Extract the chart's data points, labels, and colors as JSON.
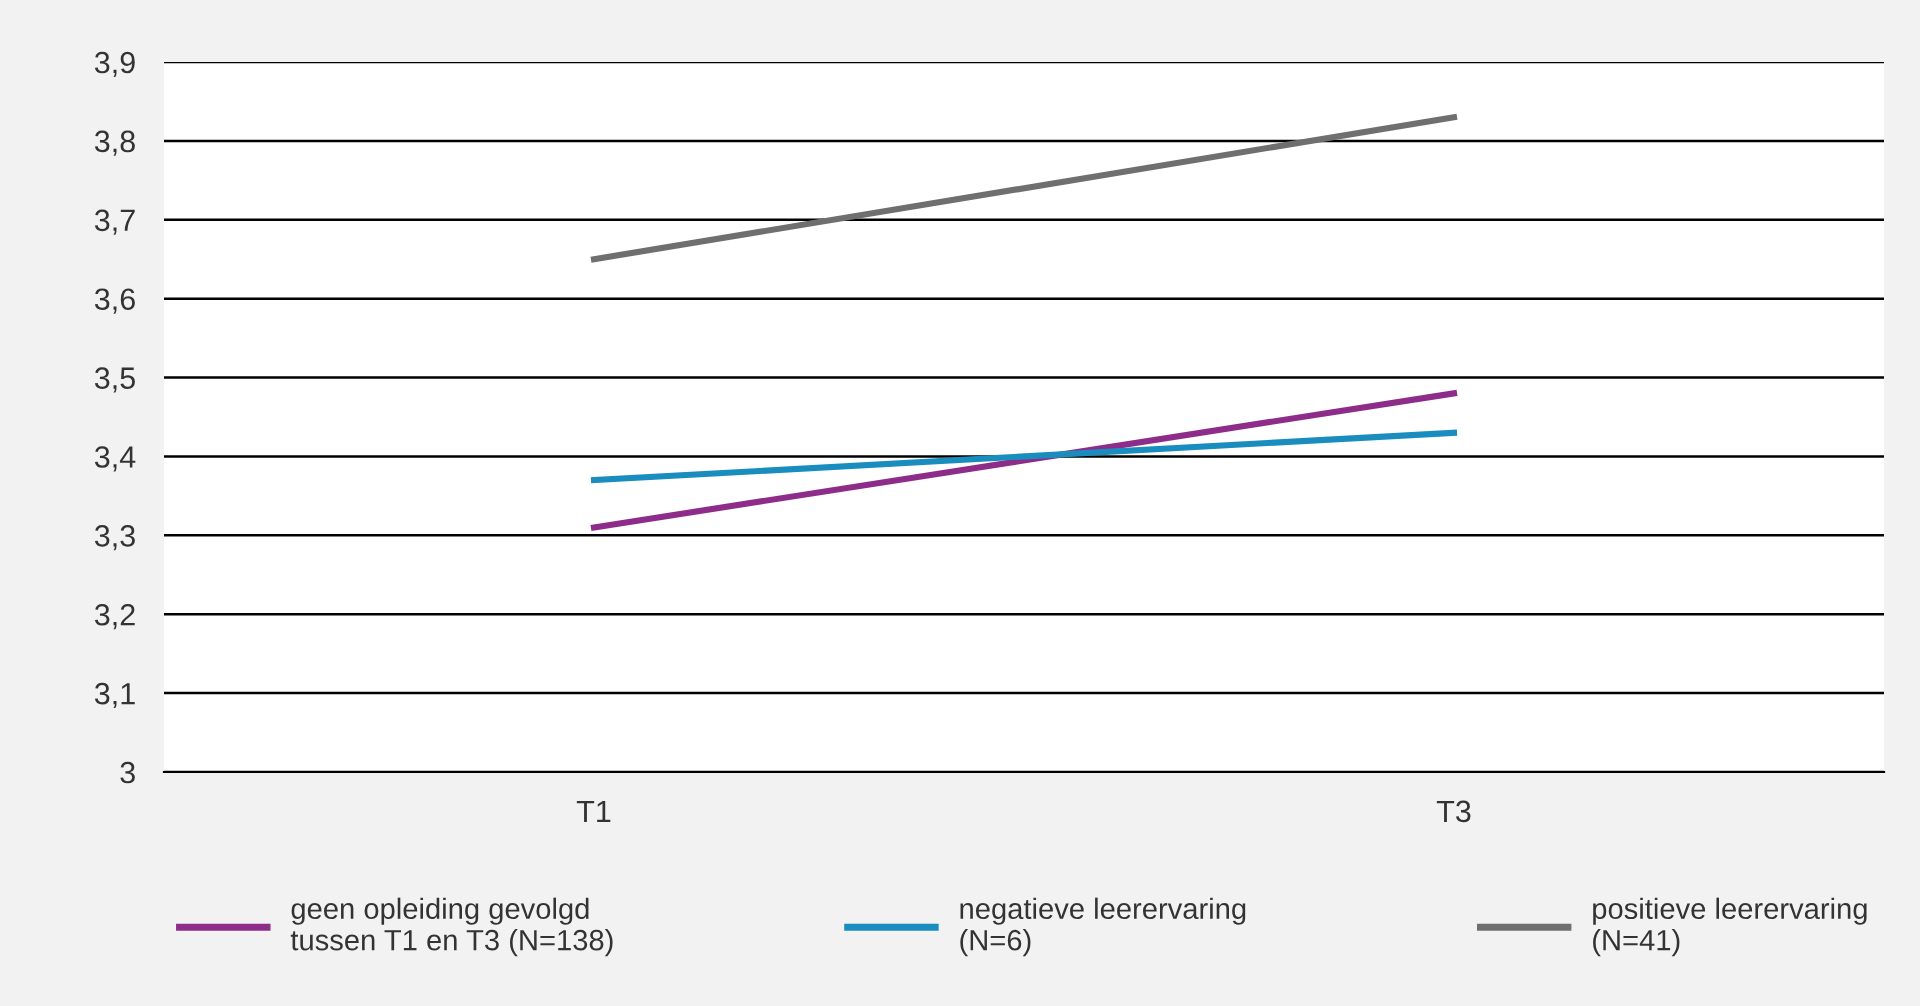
{
  "chart_data": {
    "type": "line",
    "categories": [
      "T1",
      "T3"
    ],
    "series": [
      {
        "name": "geen opleiding gevolgd\ntussen T1 en T3 (N=138)",
        "color": "#8e2c8a",
        "values": [
          3.31,
          3.48
        ]
      },
      {
        "name": "negatieve leerervaring\n(N=6)",
        "color": "#1a8dbf",
        "values": [
          3.37,
          3.43
        ]
      },
      {
        "name": "positieve leerervaring\n(N=41)",
        "color": "#6f6f6f",
        "values": [
          3.65,
          3.83
        ]
      }
    ],
    "ylim": [
      3,
      3.9
    ],
    "yticks": [
      {
        "value": 3,
        "label": "3"
      },
      {
        "value": 3.1,
        "label": "3,1"
      },
      {
        "value": 3.2,
        "label": "3,2"
      },
      {
        "value": 3.3,
        "label": "3,3"
      },
      {
        "value": 3.4,
        "label": "3,4"
      },
      {
        "value": 3.5,
        "label": "3,5"
      },
      {
        "value": 3.6,
        "label": "3,6"
      },
      {
        "value": 3.7,
        "label": "3,7"
      },
      {
        "value": 3.8,
        "label": "3,8"
      },
      {
        "value": 3.9,
        "label": "3,9"
      }
    ],
    "grid": "y",
    "legend": "bottom",
    "marker": "none",
    "line_style": "solid"
  }
}
